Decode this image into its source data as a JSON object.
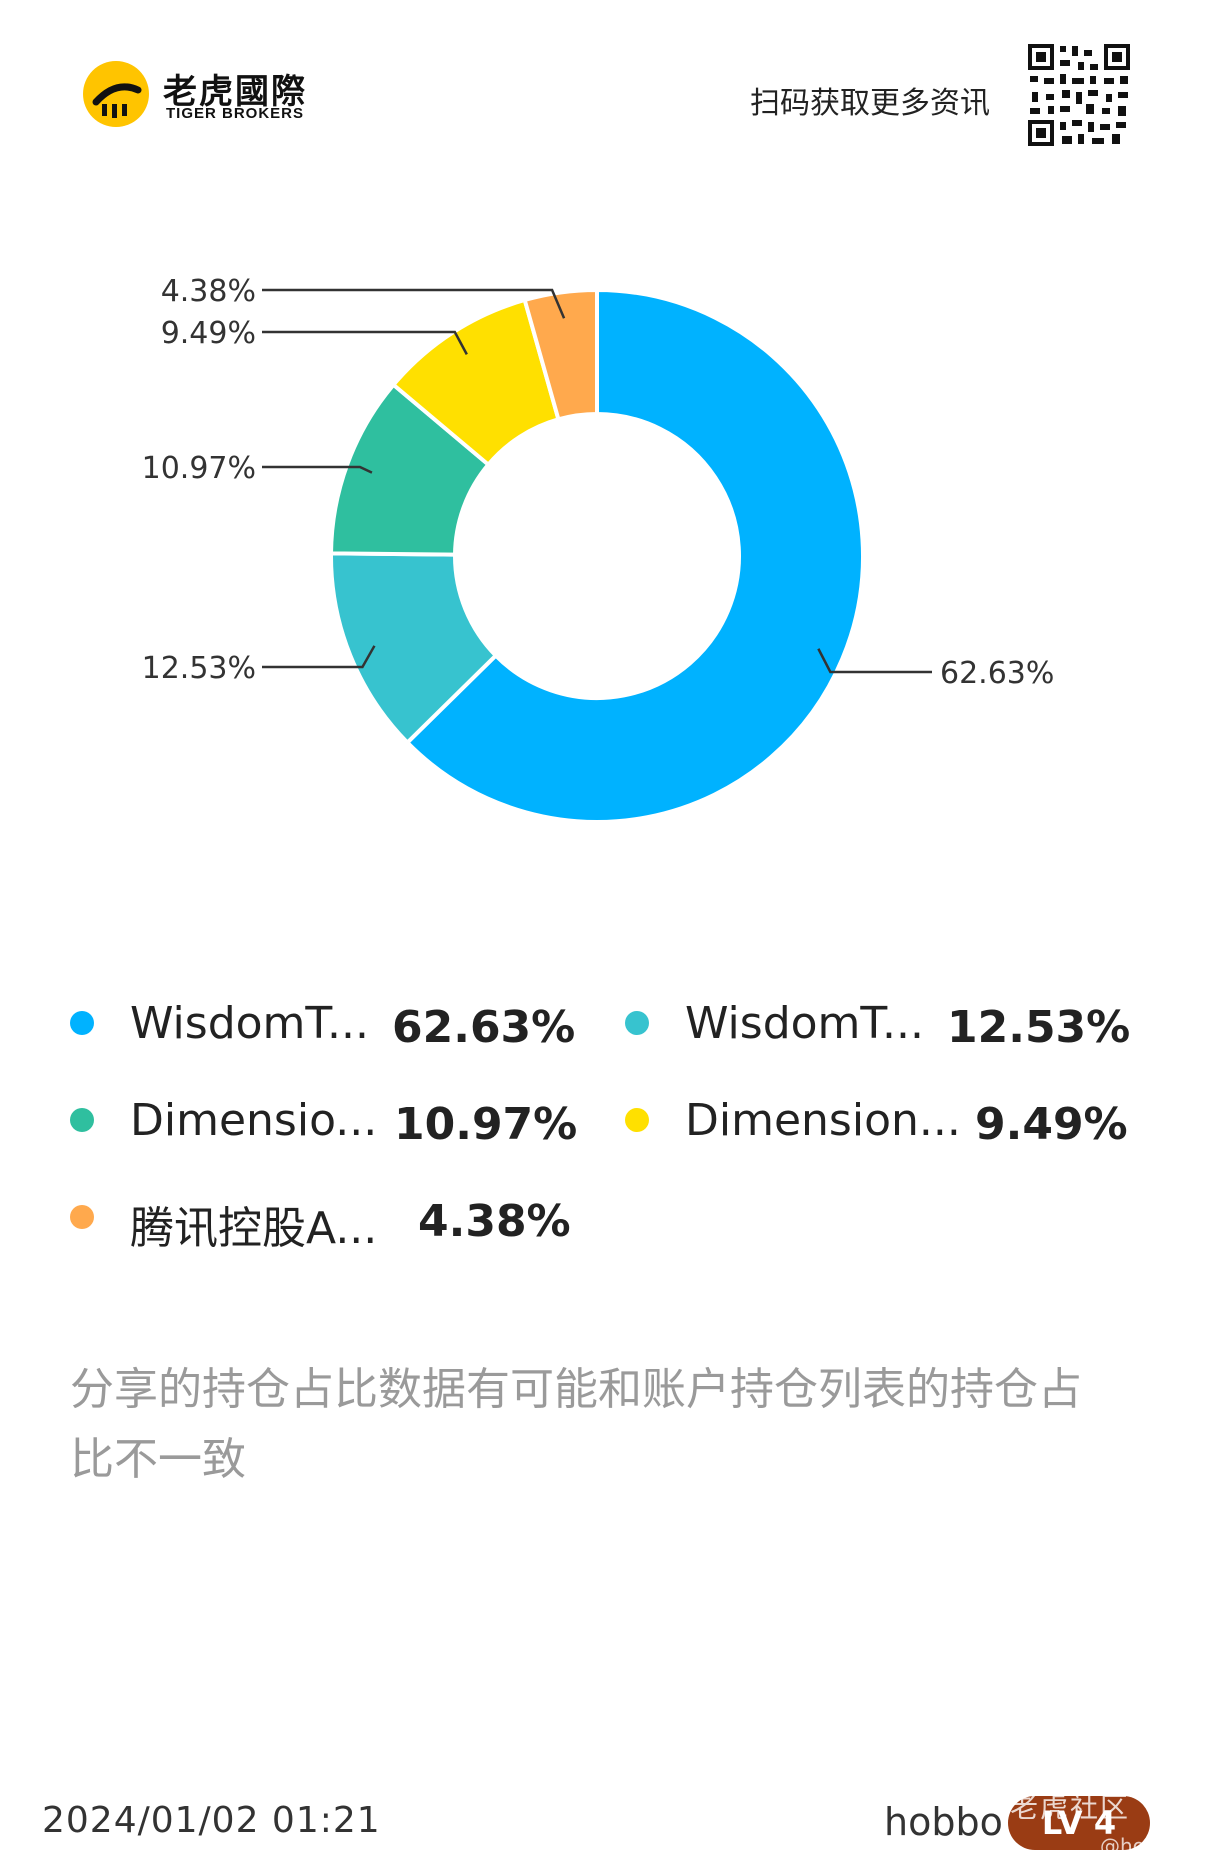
{
  "header": {
    "logo_cn": "老虎國際",
    "logo_en": "TIGER BROKERS",
    "scan_text": "扫码获取更多资讯"
  },
  "chart_data": {
    "type": "pie",
    "donut": true,
    "slices": [
      {
        "name": "WisdomT...",
        "label": "62.63%",
        "value": 62.63,
        "color": "#00b2ff"
      },
      {
        "name": "WisdomT...",
        "label": "12.53%",
        "value": 12.53,
        "color": "#37c3cf"
      },
      {
        "name": "Dimensio...",
        "label": "10.97%",
        "value": 10.97,
        "color": "#2fbf9f"
      },
      {
        "name": "Dimension...",
        "label": "9.49%",
        "value": 9.49,
        "color": "#ffe000"
      },
      {
        "name": "腾讯控股A...",
        "label": "4.38%",
        "value": 4.38,
        "color": "#ffa94d"
      }
    ]
  },
  "legend": [
    {
      "name": "WisdomT...",
      "value": "62.63%",
      "color": "#00b2ff"
    },
    {
      "name": "WisdomT...",
      "value": "12.53%",
      "color": "#37c3cf"
    },
    {
      "name": "Dimensio...",
      "value": "10.97%",
      "color": "#2fbf9f"
    },
    {
      "name": "Dimension...",
      "value": "9.49%",
      "color": "#ffe000"
    },
    {
      "name": "腾讯控股A...",
      "value": "4.38%",
      "color": "#ffa94d"
    }
  ],
  "disclaimer": "分享的持仓占比数据有可能和账户持仓列表的持仓占比不一致",
  "footer": {
    "datetime": "2024/01/02 01:21",
    "username": "hobbo",
    "level": "LV 4",
    "watermark": "老虎社区",
    "watermark_user": "@hobbo"
  }
}
